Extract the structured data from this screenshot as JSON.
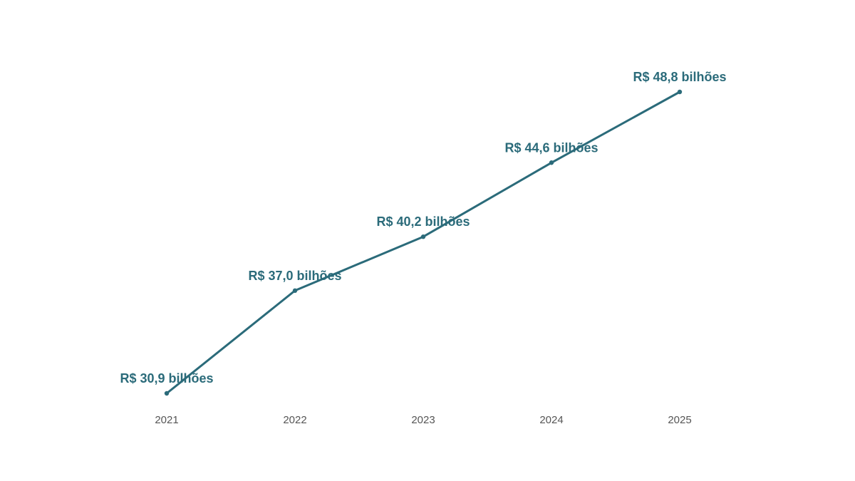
{
  "chart_data": {
    "type": "line",
    "title": "",
    "xlabel": "",
    "ylabel": "",
    "categories": [
      "2021",
      "2022",
      "2023",
      "2024",
      "2025"
    ],
    "series": [
      {
        "values": [
          30.9,
          37.0,
          40.2,
          44.6,
          48.8
        ],
        "labels": [
          "R$ 30,9 bilhões",
          "R$ 37,0 bilhões",
          "R$ 40,2 bilhões",
          "R$ 44,6 bilhões",
          "R$ 48,8 bilhões"
        ]
      }
    ],
    "ylim": [
      30.9,
      48.8
    ],
    "y_axis_visible": false,
    "grid": false,
    "legend": "none"
  },
  "colors": {
    "series": "#2b6b7a",
    "tick_text": "#555555",
    "background": "#ffffff"
  }
}
